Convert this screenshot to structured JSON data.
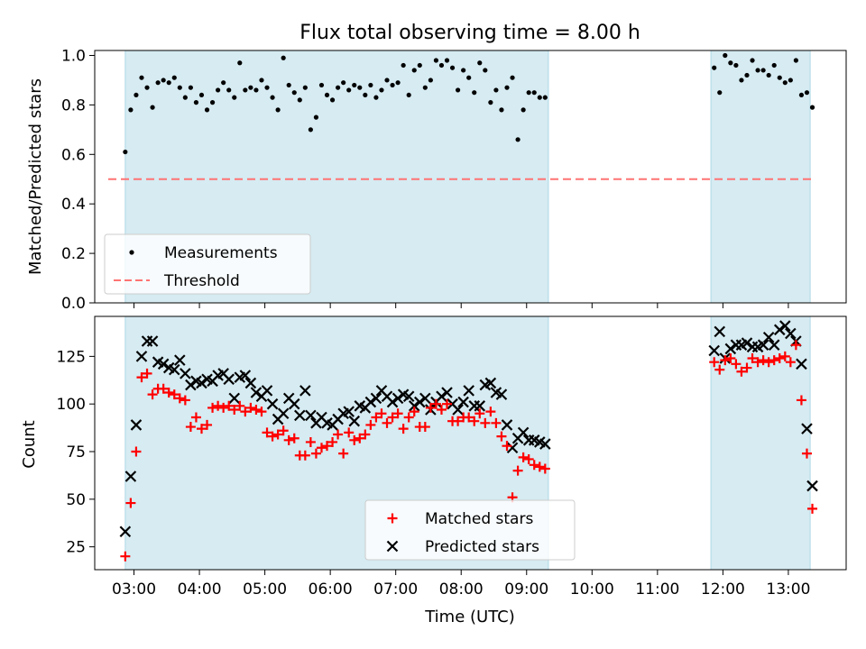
{
  "figure": {
    "title": "Flux total observing time = 8.00 h"
  },
  "chart_data": [
    {
      "type": "scatter",
      "title": "Flux total observing time = 8.00 h",
      "xlabel": "",
      "ylabel": "Matched/Predicted stars",
      "xlim": [
        "02:24",
        "13:53"
      ],
      "ylim": [
        0,
        1.02
      ],
      "yticks": [
        0.0,
        0.2,
        0.4,
        0.6,
        0.8,
        1.0
      ],
      "ytick_labels": [
        "0.0",
        "0.2",
        "0.4",
        "0.6",
        "0.8",
        "1.0"
      ],
      "grid": false,
      "legend_position": "lower-left",
      "observing_windows": [
        [
          "02:52",
          "09:20"
        ],
        [
          "11:49",
          "13:20"
        ]
      ],
      "series": [
        {
          "name": "Measurements",
          "kind": "scatter",
          "marker": "dot",
          "color": "#000000",
          "x": [
            "02:52",
            "02:57",
            "03:02",
            "03:07",
            "03:12",
            "03:17",
            "03:22",
            "03:27",
            "03:32",
            "03:37",
            "03:42",
            "03:47",
            "03:52",
            "03:57",
            "04:02",
            "04:07",
            "04:12",
            "04:17",
            "04:22",
            "04:27",
            "04:32",
            "04:37",
            "04:42",
            "04:47",
            "04:52",
            "04:57",
            "05:02",
            "05:07",
            "05:12",
            "05:17",
            "05:22",
            "05:27",
            "05:32",
            "05:37",
            "05:42",
            "05:47",
            "05:52",
            "05:57",
            "06:02",
            "06:07",
            "06:12",
            "06:17",
            "06:22",
            "06:27",
            "06:32",
            "06:37",
            "06:42",
            "06:47",
            "06:52",
            "06:57",
            "07:02",
            "07:07",
            "07:12",
            "07:17",
            "07:22",
            "07:27",
            "07:32",
            "07:37",
            "07:42",
            "07:47",
            "07:52",
            "07:57",
            "08:02",
            "08:07",
            "08:12",
            "08:17",
            "08:22",
            "08:27",
            "08:32",
            "08:37",
            "08:42",
            "08:47",
            "08:52",
            "08:57",
            "09:02",
            "09:07",
            "09:12",
            "09:17",
            "11:52",
            "11:57",
            "12:02",
            "12:07",
            "12:12",
            "12:17",
            "12:22",
            "12:27",
            "12:32",
            "12:37",
            "12:42",
            "12:47",
            "12:52",
            "12:57",
            "13:02",
            "13:07",
            "13:12",
            "13:17",
            "13:22"
          ],
          "values": [
            0.61,
            0.78,
            0.84,
            0.91,
            0.87,
            0.79,
            0.89,
            0.9,
            0.89,
            0.91,
            0.87,
            0.83,
            0.87,
            0.81,
            0.84,
            0.78,
            0.81,
            0.86,
            0.89,
            0.86,
            0.83,
            0.97,
            0.86,
            0.87,
            0.86,
            0.9,
            0.87,
            0.83,
            0.78,
            0.99,
            0.88,
            0.85,
            0.82,
            0.87,
            0.7,
            0.75,
            0.88,
            0.84,
            0.82,
            0.87,
            0.89,
            0.86,
            0.88,
            0.87,
            0.84,
            0.88,
            0.83,
            0.86,
            0.9,
            0.88,
            0.89,
            0.96,
            0.84,
            0.94,
            0.96,
            0.87,
            0.9,
            0.98,
            0.96,
            0.98,
            0.95,
            0.86,
            0.94,
            0.91,
            0.85,
            0.97,
            0.94,
            0.81,
            0.86,
            0.78,
            0.87,
            0.91,
            0.66,
            0.78,
            0.85,
            0.85,
            0.83,
            0.83,
            0.95,
            0.85,
            1.0,
            0.97,
            0.96,
            0.9,
            0.92,
            0.98,
            0.94,
            0.94,
            0.92,
            0.96,
            0.91,
            0.89,
            0.9,
            0.98,
            0.84,
            0.85,
            0.79
          ]
        },
        {
          "name": "Threshold",
          "kind": "line",
          "style": "dashed",
          "color": "#ff7373",
          "value": 0.5
        }
      ]
    },
    {
      "type": "scatter",
      "title": "",
      "xlabel": "Time (UTC)",
      "ylabel": "Count",
      "xlim": [
        "02:24",
        "13:53"
      ],
      "ylim": [
        13,
        146
      ],
      "xticks": [
        "03:00",
        "04:00",
        "05:00",
        "06:00",
        "07:00",
        "08:00",
        "09:00",
        "10:00",
        "11:00",
        "12:00",
        "13:00"
      ],
      "yticks": [
        25,
        50,
        75,
        100,
        125
      ],
      "ytick_labels": [
        "25",
        "50",
        "75",
        "100",
        "125"
      ],
      "grid": false,
      "legend_position": "bottom-center",
      "observing_windows": [
        [
          "02:52",
          "09:20"
        ],
        [
          "11:49",
          "13:20"
        ]
      ],
      "series": [
        {
          "name": "Matched stars",
          "kind": "scatter",
          "marker": "plus",
          "color": "#ff0000",
          "x": [
            "02:52",
            "02:57",
            "03:02",
            "03:07",
            "03:12",
            "03:17",
            "03:22",
            "03:27",
            "03:32",
            "03:37",
            "03:42",
            "03:47",
            "03:52",
            "03:57",
            "04:02",
            "04:07",
            "04:12",
            "04:17",
            "04:22",
            "04:27",
            "04:32",
            "04:37",
            "04:42",
            "04:47",
            "04:52",
            "04:57",
            "05:02",
            "05:07",
            "05:12",
            "05:17",
            "05:22",
            "05:27",
            "05:32",
            "05:37",
            "05:42",
            "05:47",
            "05:52",
            "05:57",
            "06:02",
            "06:07",
            "06:12",
            "06:17",
            "06:22",
            "06:27",
            "06:32",
            "06:37",
            "06:42",
            "06:47",
            "06:52",
            "06:57",
            "07:02",
            "07:07",
            "07:12",
            "07:17",
            "07:22",
            "07:27",
            "07:32",
            "07:37",
            "07:42",
            "07:47",
            "07:52",
            "07:57",
            "08:02",
            "08:07",
            "08:12",
            "08:17",
            "08:22",
            "08:27",
            "08:32",
            "08:37",
            "08:42",
            "08:47",
            "08:52",
            "08:57",
            "09:02",
            "09:07",
            "09:12",
            "09:17",
            "11:52",
            "11:57",
            "12:02",
            "12:07",
            "12:12",
            "12:17",
            "12:22",
            "12:27",
            "12:32",
            "12:37",
            "12:42",
            "12:47",
            "12:52",
            "12:57",
            "13:02",
            "13:07",
            "13:12",
            "13:17",
            "13:22"
          ],
          "values": [
            20,
            48,
            75,
            114,
            116,
            105,
            108,
            108,
            106,
            105,
            103,
            102,
            88,
            93,
            87,
            89,
            98,
            99,
            98,
            99,
            97,
            99,
            96,
            98,
            97,
            96,
            85,
            83,
            84,
            86,
            81,
            82,
            73,
            73,
            80,
            74,
            77,
            78,
            80,
            84,
            74,
            85,
            81,
            82,
            84,
            89,
            93,
            95,
            90,
            93,
            95,
            87,
            93,
            96,
            88,
            88,
            98,
            100,
            97,
            100,
            91,
            91,
            93,
            93,
            91,
            95,
            90,
            96,
            90,
            83,
            78,
            51,
            65,
            72,
            71,
            68,
            67,
            66,
            122,
            118,
            123,
            124,
            121,
            117,
            119,
            124,
            122,
            123,
            122,
            123,
            124,
            125,
            122,
            131,
            102,
            74,
            45
          ]
        },
        {
          "name": "Predicted stars",
          "kind": "scatter",
          "marker": "x",
          "color": "#000000",
          "x": [
            "02:52",
            "02:57",
            "03:02",
            "03:07",
            "03:12",
            "03:17",
            "03:22",
            "03:27",
            "03:32",
            "03:37",
            "03:42",
            "03:47",
            "03:52",
            "03:57",
            "04:02",
            "04:07",
            "04:12",
            "04:17",
            "04:22",
            "04:27",
            "04:32",
            "04:37",
            "04:42",
            "04:47",
            "04:52",
            "04:57",
            "05:02",
            "05:07",
            "05:12",
            "05:17",
            "05:22",
            "05:27",
            "05:32",
            "05:37",
            "05:42",
            "05:47",
            "05:52",
            "05:57",
            "06:02",
            "06:07",
            "06:12",
            "06:17",
            "06:22",
            "06:27",
            "06:32",
            "06:37",
            "06:42",
            "06:47",
            "06:52",
            "06:57",
            "07:02",
            "07:07",
            "07:12",
            "07:17",
            "07:22",
            "07:27",
            "07:32",
            "07:37",
            "07:42",
            "07:47",
            "07:52",
            "07:57",
            "08:02",
            "08:07",
            "08:12",
            "08:17",
            "08:22",
            "08:27",
            "08:32",
            "08:37",
            "08:42",
            "08:47",
            "08:52",
            "08:57",
            "09:02",
            "09:07",
            "09:12",
            "09:17",
            "11:52",
            "11:57",
            "12:02",
            "12:07",
            "12:12",
            "12:17",
            "12:22",
            "12:27",
            "12:32",
            "12:37",
            "12:42",
            "12:47",
            "12:52",
            "12:57",
            "13:02",
            "13:07",
            "13:12",
            "13:17",
            "13:22"
          ],
          "values": [
            33,
            62,
            89,
            125,
            133,
            133,
            122,
            121,
            119,
            118,
            123,
            116,
            110,
            112,
            111,
            113,
            112,
            115,
            116,
            113,
            103,
            114,
            115,
            111,
            106,
            104,
            107,
            100,
            92,
            95,
            103,
            100,
            94,
            107,
            94,
            90,
            93,
            90,
            89,
            92,
            95,
            96,
            91,
            99,
            98,
            101,
            103,
            107,
            104,
            101,
            103,
            105,
            104,
            99,
            101,
            103,
            97,
            101,
            104,
            106,
            100,
            97,
            101,
            107,
            99,
            99,
            110,
            111,
            106,
            105,
            89,
            77,
            82,
            85,
            81,
            81,
            80,
            79,
            128,
            138,
            124,
            129,
            131,
            131,
            132,
            130,
            130,
            131,
            135,
            131,
            139,
            141,
            137,
            133,
            121,
            87,
            57
          ]
        }
      ]
    }
  ]
}
